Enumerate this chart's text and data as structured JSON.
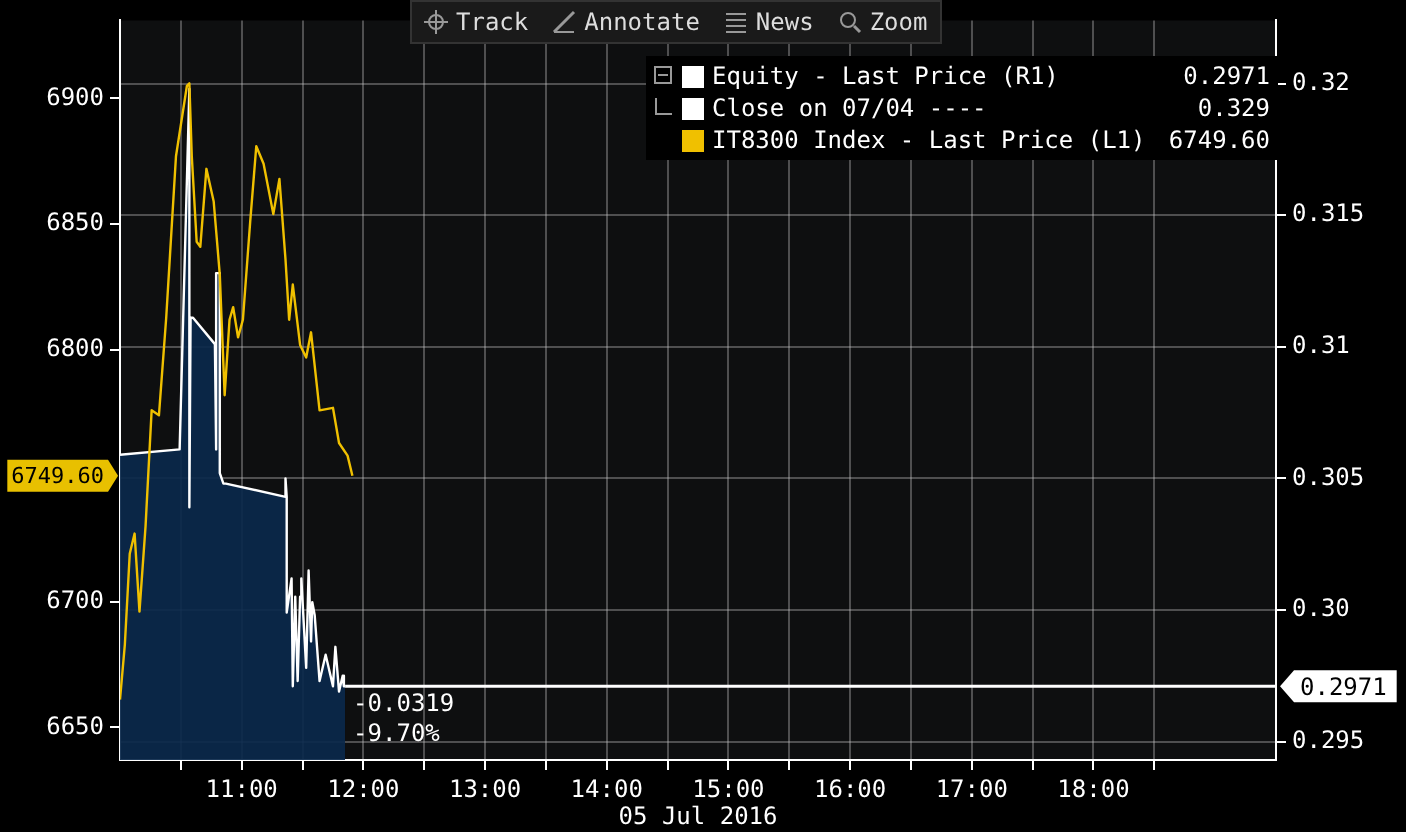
{
  "chart_data": {
    "type": "line",
    "xlabel": "05 Jul 2016",
    "legend": "top right",
    "grid": true,
    "xlim": [
      10,
      19.5
    ],
    "xticks": [
      {
        "value": 10.5,
        "label": null
      },
      {
        "value": 11,
        "label": "11:00"
      },
      {
        "value": 11.5,
        "label": null
      },
      {
        "value": 12,
        "label": "12:00"
      },
      {
        "value": 12.5,
        "label": null
      },
      {
        "value": 13,
        "label": "13:00"
      },
      {
        "value": 13.5,
        "label": null
      },
      {
        "value": 14,
        "label": "14:00"
      },
      {
        "value": 14.5,
        "label": null
      },
      {
        "value": 15,
        "label": "15:00"
      },
      {
        "value": 15.5,
        "label": null
      },
      {
        "value": 16,
        "label": "16:00"
      },
      {
        "value": 16.5,
        "label": null
      },
      {
        "value": 17,
        "label": "17:00"
      },
      {
        "value": 17.5,
        "label": null
      },
      {
        "value": 18,
        "label": "18:00"
      },
      {
        "value": 18.5,
        "label": null
      }
    ],
    "ylim": [
      6637,
      6931
    ],
    "yticks": [
      6650,
      6700,
      6800,
      6850,
      6900
    ],
    "y2lim": [
      0.2943,
      0.3224
    ],
    "y2ticks": [
      0.295,
      {
        "value": 0.3,
        "label": "0.30"
      },
      0.305,
      0.31,
      0.315,
      0.32
    ],
    "series": [
      {
        "name": "Equity - Last Price (R1)",
        "type": "area",
        "axis": "y2",
        "color": "#ffffff",
        "x": [
          10,
          10.49,
          10.49,
          10.57,
          10.57,
          10.58,
          10.6,
          10.78,
          10.78,
          10.79,
          10.79,
          10.82,
          10.82,
          10.85,
          10.87,
          11.36,
          11.36,
          11.37,
          11.37,
          11.41,
          11.42,
          11.44,
          11.46,
          11.48,
          11.49,
          11.53,
          11.55,
          11.57,
          11.58,
          11.6,
          11.64,
          11.69,
          11.75,
          11.77,
          11.8,
          11.83,
          11.84,
          11.85
        ],
        "values": [
          0.3059,
          0.3061,
          0.3061,
          0.3198,
          0.3039,
          0.3111,
          0.3111,
          0.3101,
          0.3101,
          0.3061,
          0.3128,
          0.3128,
          0.3052,
          0.3048,
          0.3048,
          0.3043,
          0.305,
          0.3043,
          0.2999,
          0.3012,
          0.2971,
          0.3005,
          0.2973,
          0.3005,
          0.3012,
          0.2978,
          0.3015,
          0.2988,
          0.3003,
          0.2998,
          0.2973,
          0.2983,
          0.2971,
          0.2986,
          0.2969,
          0.2975,
          0.2971,
          0.2971
        ]
      },
      {
        "name": "IT8300 Index - Last Price (L1)",
        "type": "line",
        "axis": "y",
        "color": "#f0c000",
        "x": [
          10,
          10.04,
          10.08,
          10.12,
          10.16,
          10.21,
          10.26,
          10.32,
          10.38,
          10.46,
          10.55,
          10.57,
          10.59,
          10.63,
          10.66,
          10.71,
          10.77,
          10.82,
          10.86,
          10.9,
          10.93,
          10.97,
          11.01,
          11.07,
          11.12,
          11.18,
          11.26,
          11.31,
          11.36,
          11.39,
          11.42,
          11.48,
          11.53,
          11.57,
          11.64,
          11.75,
          11.8,
          11.87,
          11.91
        ],
        "values": [
          6661,
          6683,
          6719,
          6727,
          6696,
          6730,
          6776,
          6774,
          6813,
          6877,
          6905,
          6906,
          6877,
          6843,
          6841,
          6872,
          6859,
          6830,
          6782,
          6812,
          6817,
          6805,
          6812,
          6851,
          6881,
          6874,
          6854,
          6868,
          6836,
          6812,
          6826,
          6802,
          6797,
          6807,
          6776,
          6777,
          6763,
          6758,
          6750
        ]
      }
    ],
    "ref_lines": [
      {
        "axis": "y2",
        "value": 0.2971,
        "label": "0.2971",
        "color": "#ffffff"
      }
    ],
    "annotations": [
      "Track",
      "Annotate",
      "News",
      "Zoom",
      "Close on 07/04 ----",
      "0.329",
      "0.2971",
      "6749.60",
      "-0.0319",
      "-9.70%",
      "6749.60"
    ]
  }
}
